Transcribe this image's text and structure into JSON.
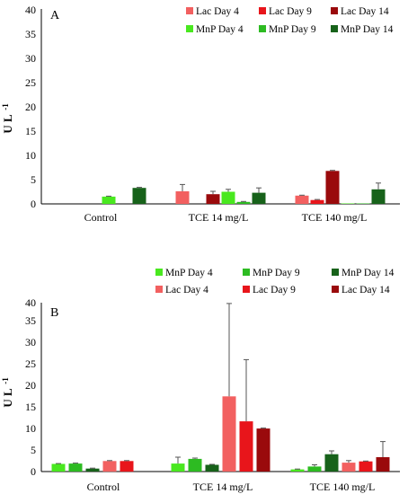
{
  "colors": {
    "Lac Day 4": "#f26060",
    "Lac Day 9": "#e8151b",
    "Lac Day 14": "#9a0a0c",
    "MnP Day 4": "#49e81f",
    "MnP Day 9": "#2dbb22",
    "MnP Day 14": "#17621a",
    "axis": "#000000",
    "error_bar": "#555555"
  },
  "chart_data": [
    {
      "type": "bar",
      "panel_label": "A",
      "ylabel": "U L",
      "ylabel_superscript": "-1",
      "ylim": [
        0,
        40
      ],
      "yticks": [
        "0",
        "5",
        "10",
        "15",
        "20",
        "25",
        "30",
        "35",
        "40"
      ],
      "grid": false,
      "legend_position": "top-right",
      "categories": [
        "Control",
        "TCE 14 mg/L",
        "TCE 140 mg/L"
      ],
      "series": [
        {
          "name": "Lac Day 4",
          "values": [
            0,
            2.6,
            1.7
          ],
          "errors": [
            0,
            1.4,
            0.1
          ]
        },
        {
          "name": "Lac Day 9",
          "values": [
            0,
            0,
            0.8
          ],
          "errors": [
            0,
            0,
            0.1
          ]
        },
        {
          "name": "Lac Day 14",
          "values": [
            0,
            2.0,
            6.8
          ],
          "errors": [
            0,
            0.6,
            0.1
          ]
        },
        {
          "name": "MnP Day 4",
          "values": [
            1.5,
            2.5,
            0.1
          ],
          "errors": [
            0.1,
            0.5,
            0
          ]
        },
        {
          "name": "MnP Day 9",
          "values": [
            0,
            0.4,
            0.1
          ],
          "errors": [
            0,
            0.1,
            0
          ]
        },
        {
          "name": "MnP Day 14",
          "values": [
            3.3,
            2.3,
            3.0
          ],
          "errors": [
            0.1,
            1.0,
            1.3
          ]
        }
      ]
    },
    {
      "type": "bar",
      "panel_label": "B",
      "ylabel": "U L",
      "ylabel_superscript": "-1",
      "ylim": [
        0,
        40
      ],
      "yticks": [
        "0",
        "5",
        "10",
        "15",
        "20",
        "25",
        "30",
        "35",
        "40"
      ],
      "grid": false,
      "legend_position": "top",
      "categories": [
        "Control",
        "TCE 14 mg/L",
        "TCE 140 mg/L"
      ],
      "series": [
        {
          "name": "MnP Day 4",
          "values": [
            1.8,
            1.9,
            0.5
          ],
          "errors": [
            0.1,
            1.5,
            0.1
          ]
        },
        {
          "name": "MnP Day 9",
          "values": [
            1.9,
            3.0,
            1.2
          ],
          "errors": [
            0.1,
            0.2,
            0.4
          ]
        },
        {
          "name": "MnP Day 14",
          "values": [
            0.7,
            1.6,
            4.1
          ],
          "errors": [
            0.1,
            0.1,
            0.8
          ]
        },
        {
          "name": "Lac Day 4",
          "values": [
            2.5,
            17.8,
            2.1
          ],
          "errors": [
            0.1,
            22.0,
            0.5
          ]
        },
        {
          "name": "Lac Day 9",
          "values": [
            2.5,
            11.9,
            2.4
          ],
          "errors": [
            0.1,
            14.6,
            0.1
          ]
        },
        {
          "name": "Lac Day 14",
          "values": [
            0,
            10.2,
            3.4
          ],
          "errors": [
            0,
            0.1,
            3.7
          ]
        }
      ]
    }
  ]
}
